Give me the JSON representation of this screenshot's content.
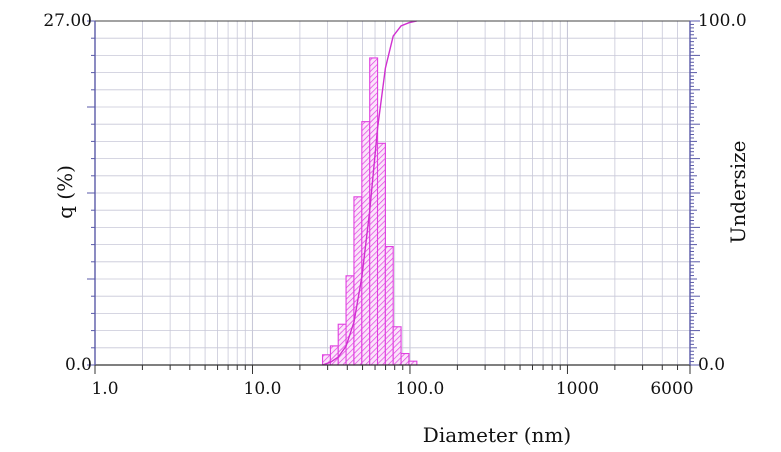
{
  "chart_data": {
    "type": "bar",
    "xlabel": "Diameter (nm)",
    "ylabel": "q (%)",
    "y2label": "Undersize",
    "x_scale": "log",
    "xlim": [
      1.0,
      6000
    ],
    "ylim": [
      0.0,
      27.0
    ],
    "y2lim": [
      0.0,
      100.0
    ],
    "x_tick_labels": [
      "1.0",
      "10.0",
      "100.0",
      "1000",
      "6000"
    ],
    "x_tick_values": [
      1,
      10,
      100,
      1000,
      6000
    ],
    "y_tick_labels": [
      "0.0",
      "27.00"
    ],
    "y_tick_values": [
      0,
      27
    ],
    "y2_tick_labels": [
      "0.0",
      "100.0"
    ],
    "y2_tick_values": [
      0,
      100
    ],
    "grid": true,
    "bars": {
      "x": [
        29.5,
        33.1,
        37.1,
        41.6,
        46.7,
        52.4,
        58.8,
        65.9,
        73.9,
        82.9,
        93.0,
        104.4
      ],
      "values": [
        0.8,
        1.5,
        3.2,
        7.0,
        13.2,
        19.1,
        24.1,
        17.4,
        9.3,
        3.0,
        0.9,
        0.3
      ]
    },
    "cumulative": {
      "x": [
        27.8,
        31.3,
        35.0,
        39.3,
        44.1,
        49.5,
        55.5,
        62.3,
        69.8,
        78.3,
        87.9,
        98.6,
        110.6
      ],
      "values": [
        0.0,
        0.8,
        2.3,
        5.5,
        12.5,
        25.7,
        44.8,
        68.9,
        86.3,
        95.6,
        98.6,
        99.5,
        100.0
      ]
    },
    "colors": {
      "bars": "#e040e0",
      "curve": "#d030d0",
      "grid": "#c8c8d8",
      "axis": "#5a5aa8"
    }
  }
}
